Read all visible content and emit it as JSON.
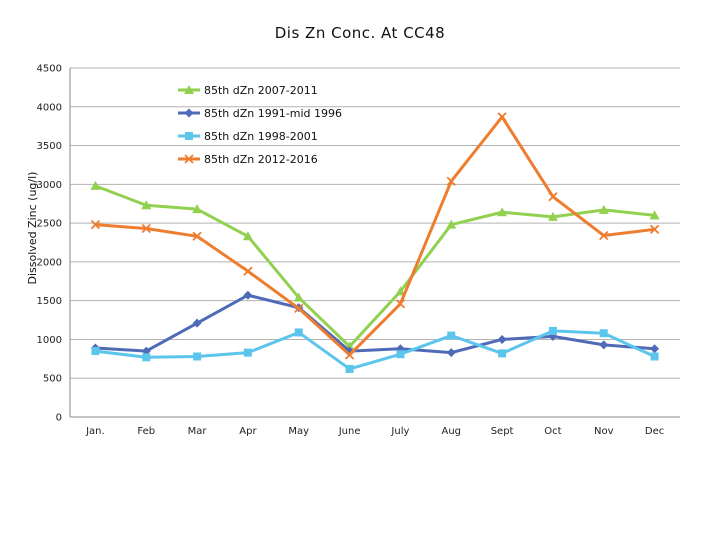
{
  "chart_data": {
    "type": "line",
    "title": "Dis Zn Conc. At CC48",
    "xlabel": "",
    "ylabel": "Dissolved Zinc (ug/l)",
    "ylim": [
      0,
      4500
    ],
    "yticks": [
      0,
      500,
      1000,
      1500,
      2000,
      2500,
      3000,
      3500,
      4000,
      4500
    ],
    "grid": "horizontal",
    "legend_position": "top-left",
    "categories": [
      "Jan.",
      "Feb",
      "Mar",
      "Apr",
      "May",
      "June",
      "July",
      "Aug",
      "Sept",
      "Oct",
      "Nov",
      "Dec"
    ],
    "series": [
      {
        "name": "85th dZn 2007-2011",
        "color": "#92d050",
        "marker": "triangle",
        "values": [
          2980,
          2730,
          2680,
          2330,
          1540,
          910,
          1620,
          2480,
          2640,
          2580,
          2670,
          2600
        ]
      },
      {
        "name": "85th dZn 1991-mid 1996",
        "color": "#4f6bb8",
        "marker": "diamond",
        "values": [
          890,
          850,
          1210,
          1570,
          1410,
          850,
          880,
          830,
          1000,
          1040,
          930,
          880
        ]
      },
      {
        "name": "85th dZn 1998-2001",
        "color": "#5bc5ec",
        "marker": "square",
        "values": [
          850,
          770,
          780,
          830,
          1090,
          620,
          810,
          1050,
          820,
          1110,
          1080,
          780
        ]
      },
      {
        "name": "85th dZn 2012-2016",
        "color": "#ee7d30",
        "marker": "x",
        "values": [
          2480,
          2430,
          2330,
          1880,
          1400,
          800,
          1460,
          3040,
          3870,
          2840,
          2340,
          2420
        ]
      }
    ]
  }
}
